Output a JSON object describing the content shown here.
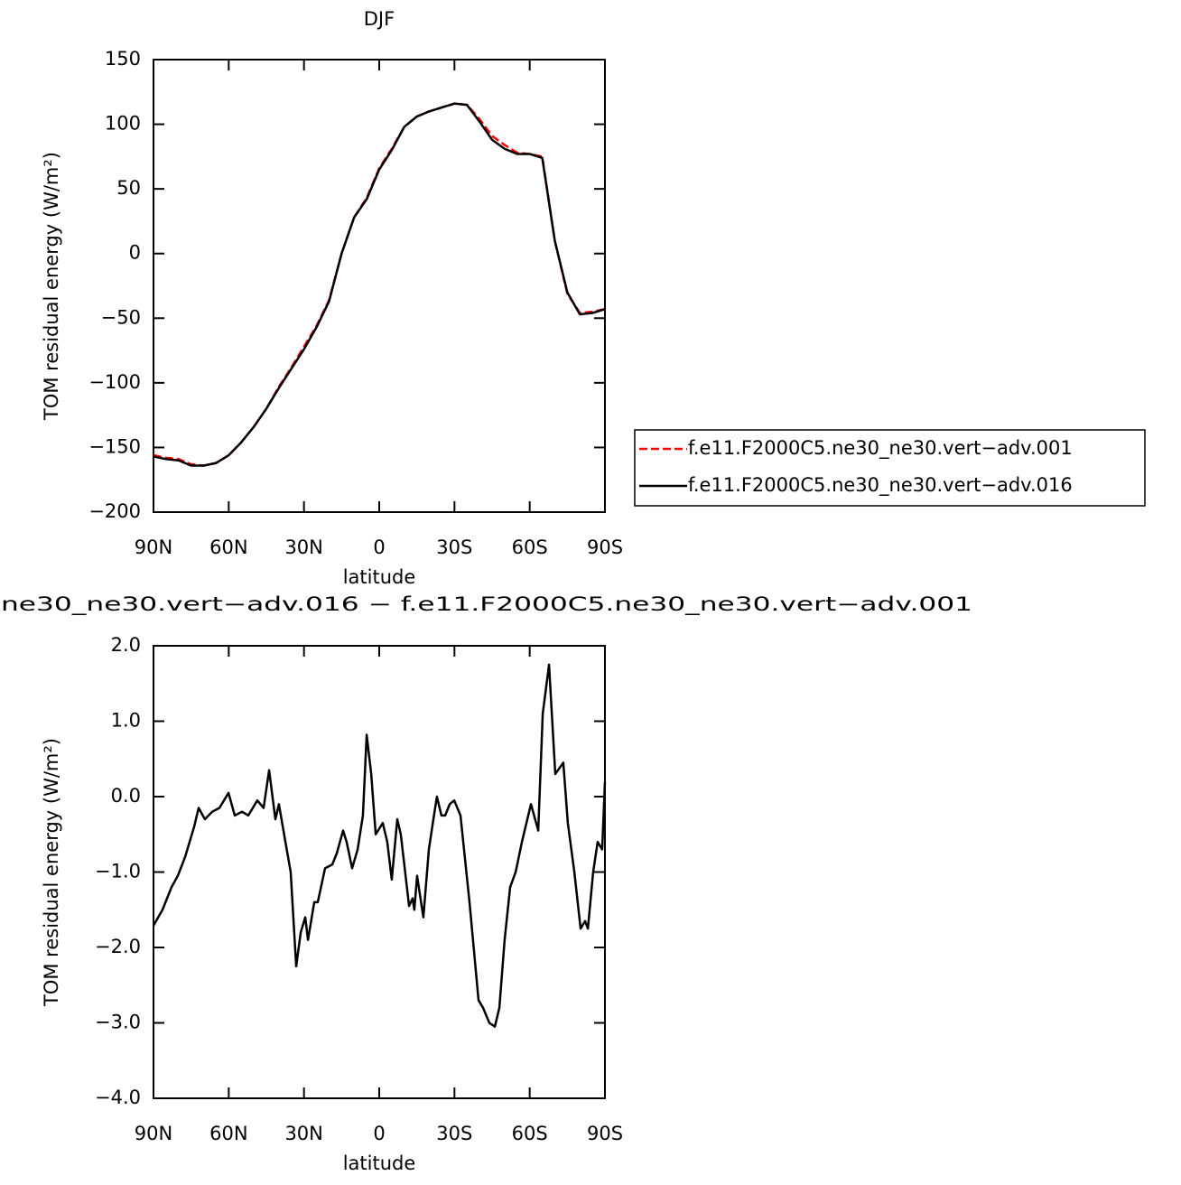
{
  "chart_data": [
    {
      "type": "line",
      "title": "DJF",
      "x_label": "latitude",
      "y_label": "TOM residual energy (W/m²)",
      "xlim": [
        90,
        -90
      ],
      "ylim": [
        -200,
        150
      ],
      "xticks": [
        {
          "value": 90,
          "label": "90N"
        },
        {
          "value": 60,
          "label": "60N"
        },
        {
          "value": 30,
          "label": "30N"
        },
        0,
        {
          "value": -30,
          "label": "30S"
        },
        {
          "value": -60,
          "label": "60S"
        },
        {
          "value": -90,
          "label": "90S"
        }
      ],
      "yticks": [
        {
          "value": -200,
          "label": "−200"
        },
        {
          "value": -150,
          "label": "−150"
        },
        {
          "value": -100,
          "label": "−100"
        },
        {
          "value": -50,
          "label": "−50"
        },
        0,
        50,
        100,
        150
      ],
      "legend": "right",
      "x": [
        90,
        85,
        80,
        75,
        70,
        65,
        60,
        55,
        50,
        45,
        40,
        35,
        30,
        25,
        20,
        15,
        10,
        5,
        0,
        -5,
        -10,
        -15,
        -20,
        -25,
        -30,
        -35,
        -40,
        -45,
        -50,
        -55,
        -60,
        -65,
        -70,
        -75,
        -80,
        -85,
        -90
      ],
      "series": [
        {
          "name": "f.e11.F2000C5.ne30_ne30.vert−adv.001",
          "color": "#ff0000",
          "dashed": true,
          "values": [
            -156,
            -158,
            -159,
            -163,
            -164,
            -162,
            -156,
            -146,
            -134,
            -120,
            -103,
            -88,
            -72,
            -56,
            -36,
            0,
            28,
            43,
            66,
            81,
            98,
            106,
            110,
            113,
            116,
            115,
            104,
            91,
            84,
            78,
            77,
            75,
            10,
            -31,
            -46,
            -45,
            -43
          ]
        },
        {
          "name": "f.e11.F2000C5.ne30_ne30.vert−adv.016",
          "color": "#000000",
          "dashed": false,
          "values": [
            -157,
            -159,
            -160,
            -164,
            -164,
            -162,
            -156,
            -146,
            -134,
            -120,
            -104,
            -89,
            -74,
            -57,
            -37,
            0,
            28,
            42,
            65,
            80,
            98,
            106,
            110,
            113,
            116,
            115,
            102,
            88,
            81,
            77,
            77,
            74,
            10,
            -30,
            -47,
            -46,
            -43
          ]
        }
      ]
    },
    {
      "type": "line",
      "title": "ne30_ne30.vert−adv.016 − f.e11.F2000C5.ne30_ne30.vert−adv.001",
      "x_label": "latitude",
      "y_label": "TOM residual energy (W/m²)",
      "xlim": [
        90,
        -90
      ],
      "ylim": [
        -4,
        2
      ],
      "xticks": [
        {
          "value": 90,
          "label": "90N"
        },
        {
          "value": 60,
          "label": "60N"
        },
        {
          "value": 30,
          "label": "30N"
        },
        0,
        {
          "value": -30,
          "label": "30S"
        },
        {
          "value": -60,
          "label": "60S"
        },
        {
          "value": -90,
          "label": "90S"
        }
      ],
      "yticks": [
        {
          "value": -4,
          "label": "−4.0"
        },
        {
          "value": -3,
          "label": "−3.0"
        },
        {
          "value": -2,
          "label": "−2.0"
        },
        {
          "value": -1,
          "label": "−1.0"
        },
        {
          "value": 0,
          "label": "0.0"
        },
        {
          "value": 1,
          "label": "1.0"
        },
        {
          "value": 2,
          "label": "2.0"
        }
      ],
      "x": [
        90,
        86.4,
        82.8,
        80.3,
        77.4,
        73.8,
        72,
        69.5,
        66.6,
        63.7,
        60.1,
        57.6,
        54.7,
        52.2,
        48.6,
        46.1,
        43.9,
        41.4,
        40,
        37.4,
        35.3,
        33.1,
        31.3,
        29.5,
        28.4,
        25.9,
        24.5,
        21.6,
        18.7,
        16.9,
        14.4,
        13,
        10.8,
        8.6,
        6.5,
        5,
        3.2,
        1.4,
        -1.4,
        -3.2,
        -5,
        -7.2,
        -8.6,
        -11.9,
        -13.3,
        -14,
        -15.1,
        -17.6,
        -19.8,
        -21.6,
        -23,
        -24.8,
        -26.3,
        -28.1,
        -29.9,
        -32.4,
        -36,
        -39.6,
        -41.4,
        -43.9,
        -46.1,
        -47.9,
        -50,
        -52.2,
        -54.4,
        -56.9,
        -60.5,
        -63.4,
        -65.2,
        -67.7,
        -70.2,
        -73.4,
        -75.2,
        -77.8,
        -80.3,
        -82.1,
        -83.2,
        -85.3,
        -87.1,
        -88.9,
        -90
      ],
      "series": [
        {
          "color": "#000000",
          "dashed": false,
          "values": [
            -1.71,
            -1.5,
            -1.2,
            -1.05,
            -0.8,
            -0.4,
            -0.15,
            -0.3,
            -0.2,
            -0.15,
            0.05,
            -0.25,
            -0.2,
            -0.25,
            -0.05,
            -0.15,
            0.35,
            -0.3,
            -0.1,
            -0.6,
            -1.0,
            -2.25,
            -1.8,
            -1.6,
            -1.9,
            -1.4,
            -1.4,
            -0.95,
            -0.9,
            -0.75,
            -0.45,
            -0.6,
            -0.95,
            -0.7,
            -0.25,
            0.82,
            0.3,
            -0.5,
            -0.35,
            -0.6,
            -1.1,
            -0.3,
            -0.5,
            -1.45,
            -1.35,
            -1.5,
            -1.05,
            -1.6,
            -0.7,
            -0.3,
            0.0,
            -0.25,
            -0.25,
            -0.1,
            -0.05,
            -0.25,
            -1.4,
            -2.7,
            -2.8,
            -3.0,
            -3.05,
            -2.8,
            -1.9,
            -1.2,
            -1.0,
            -0.6,
            -0.1,
            -0.45,
            1.1,
            1.75,
            0.3,
            0.45,
            -0.35,
            -1.0,
            -1.75,
            -1.65,
            -1.75,
            -1.0,
            -0.6,
            -0.7,
            0.2
          ]
        }
      ]
    }
  ]
}
